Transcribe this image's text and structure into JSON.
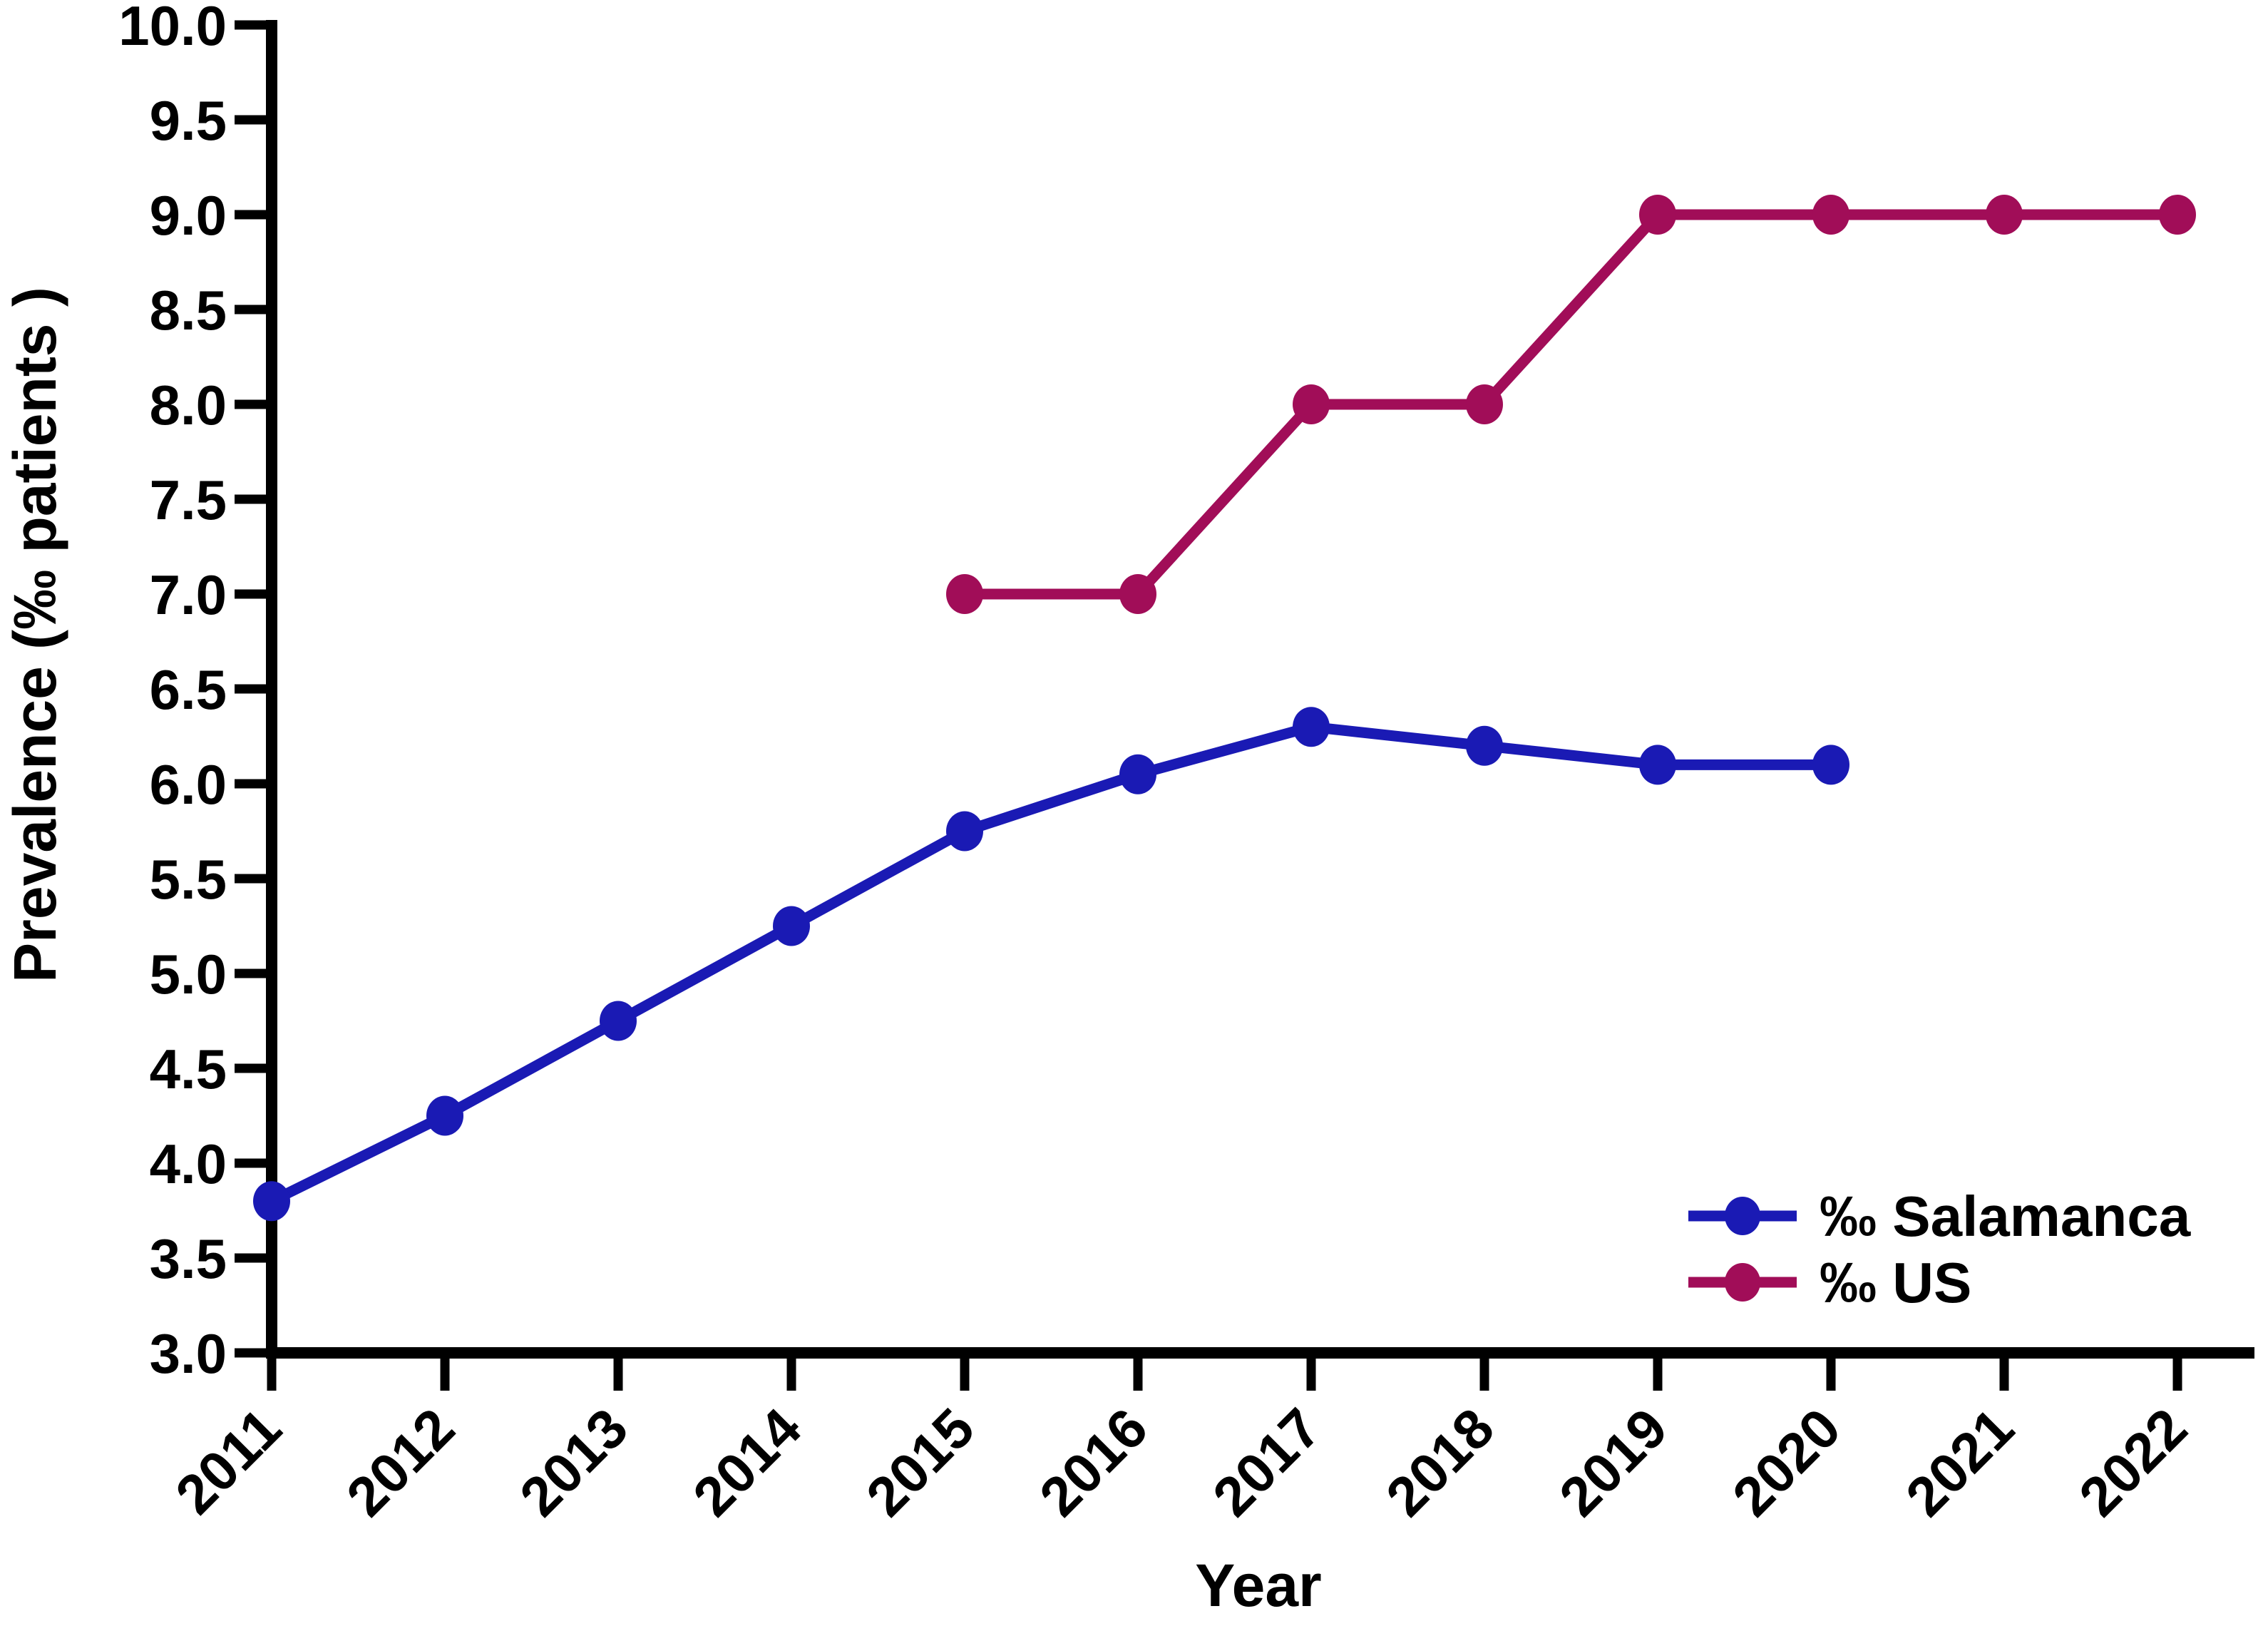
{
  "figure": {
    "background": "#ffffff",
    "axis_color": "#000000",
    "legend_position": "inside-bottom-right"
  },
  "chart_data": {
    "type": "line",
    "title": "",
    "xlabel": "Year",
    "ylabel": "Prevalence (‰ patients )",
    "x_categories": [
      2011,
      2012,
      2013,
      2014,
      2015,
      2016,
      2017,
      2018,
      2019,
      2020,
      2021,
      2022
    ],
    "ylim": [
      3.0,
      10.0
    ],
    "ytick_step": 0.5,
    "ytick_labels": [
      "3.0",
      "3.5",
      "4.0",
      "4.5",
      "5.0",
      "5.5",
      "6.0",
      "6.5",
      "7.0",
      "7.5",
      "8.0",
      "8.5",
      "9.0",
      "9.5",
      "10.0"
    ],
    "grid": false,
    "legend_position": "inside bottom right",
    "series": [
      {
        "name": "‰ Salamanca",
        "color": "#1A1AB4",
        "x": [
          2011,
          2012,
          2013,
          2014,
          2015,
          2016,
          2017,
          2018,
          2019,
          2020
        ],
        "values": [
          3.8,
          4.25,
          4.75,
          5.25,
          5.75,
          6.05,
          6.3,
          6.2,
          6.1,
          6.1
        ]
      },
      {
        "name": "‰ US",
        "color": "#A10D58",
        "x": [
          2015,
          2016,
          2017,
          2018,
          2019,
          2020,
          2021,
          2022
        ],
        "values": [
          7.0,
          7.0,
          8.0,
          8.0,
          9.0,
          9.0,
          9.0,
          9.0
        ]
      }
    ]
  }
}
